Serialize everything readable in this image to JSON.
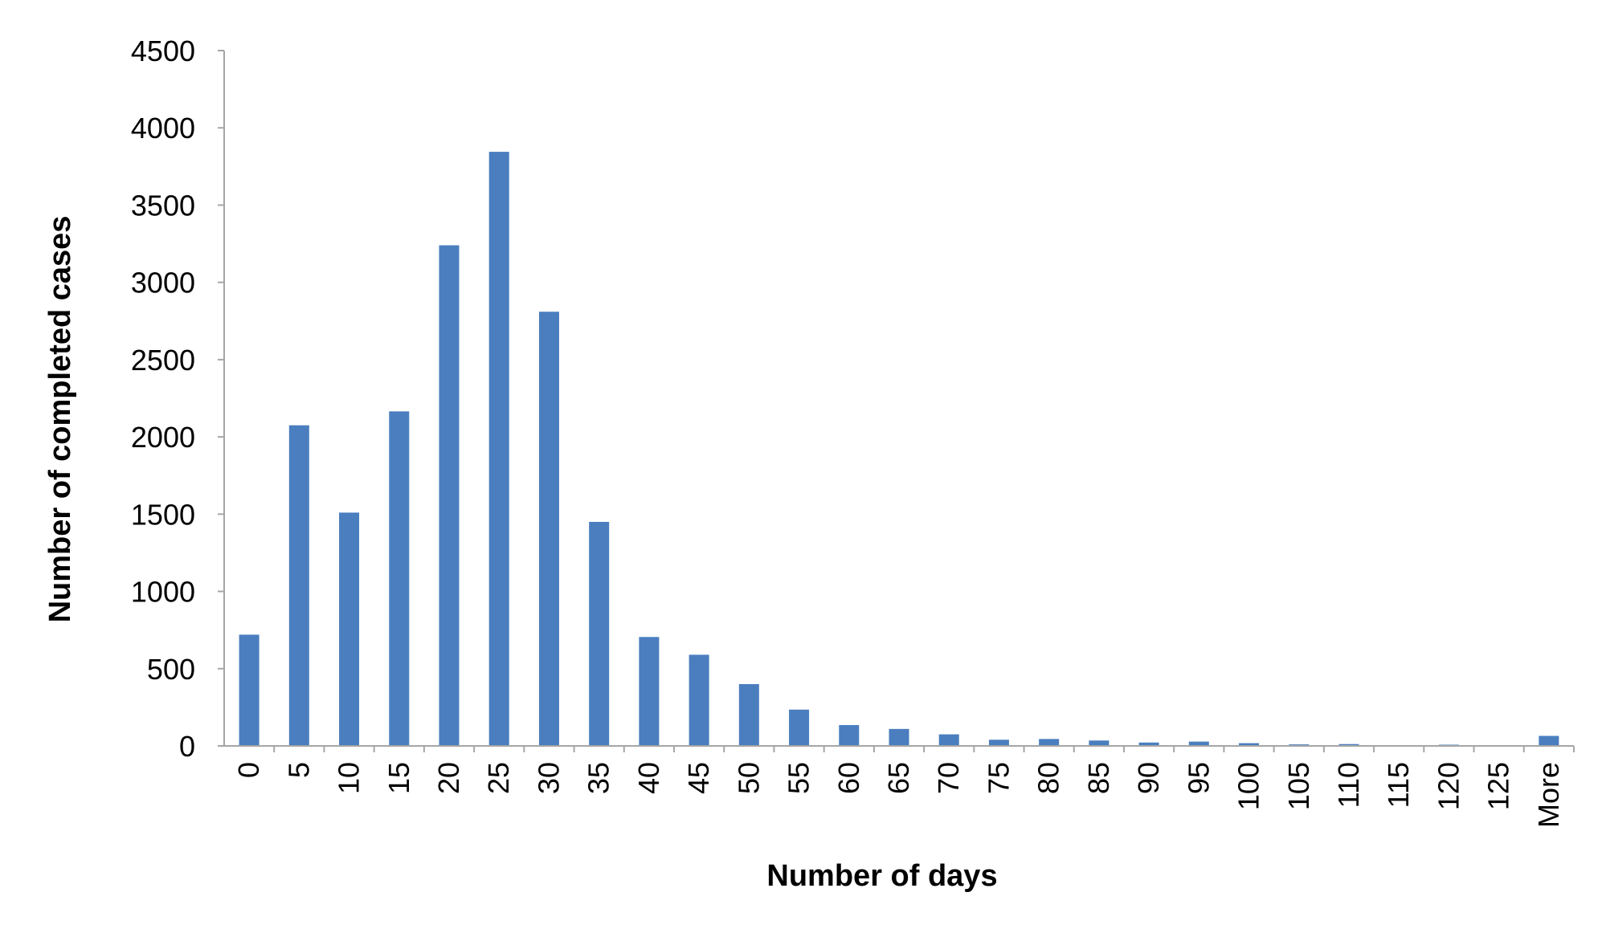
{
  "chart_data": {
    "type": "bar",
    "title": "",
    "xlabel": "Number of days",
    "ylabel": "Number of completed cases",
    "categories": [
      "0",
      "5",
      "10",
      "15",
      "20",
      "25",
      "30",
      "35",
      "40",
      "45",
      "50",
      "55",
      "60",
      "65",
      "70",
      "75",
      "80",
      "85",
      "90",
      "95",
      "100",
      "105",
      "110",
      "115",
      "120",
      "125",
      "More"
    ],
    "values": [
      720,
      2075,
      1510,
      2165,
      3240,
      3845,
      2810,
      1450,
      705,
      590,
      400,
      235,
      135,
      110,
      75,
      40,
      45,
      35,
      22,
      28,
      18,
      10,
      12,
      5,
      8,
      3,
      65
    ],
    "ylim": [
      0,
      4500
    ],
    "yticks": [
      "0",
      "500",
      "1000",
      "1500",
      "2000",
      "2500",
      "3000",
      "3500",
      "4000",
      "4500"
    ],
    "grid": false,
    "legend": "none"
  },
  "colors": {
    "bar": "#4A7EBF",
    "axis": "#A6A6A6"
  }
}
